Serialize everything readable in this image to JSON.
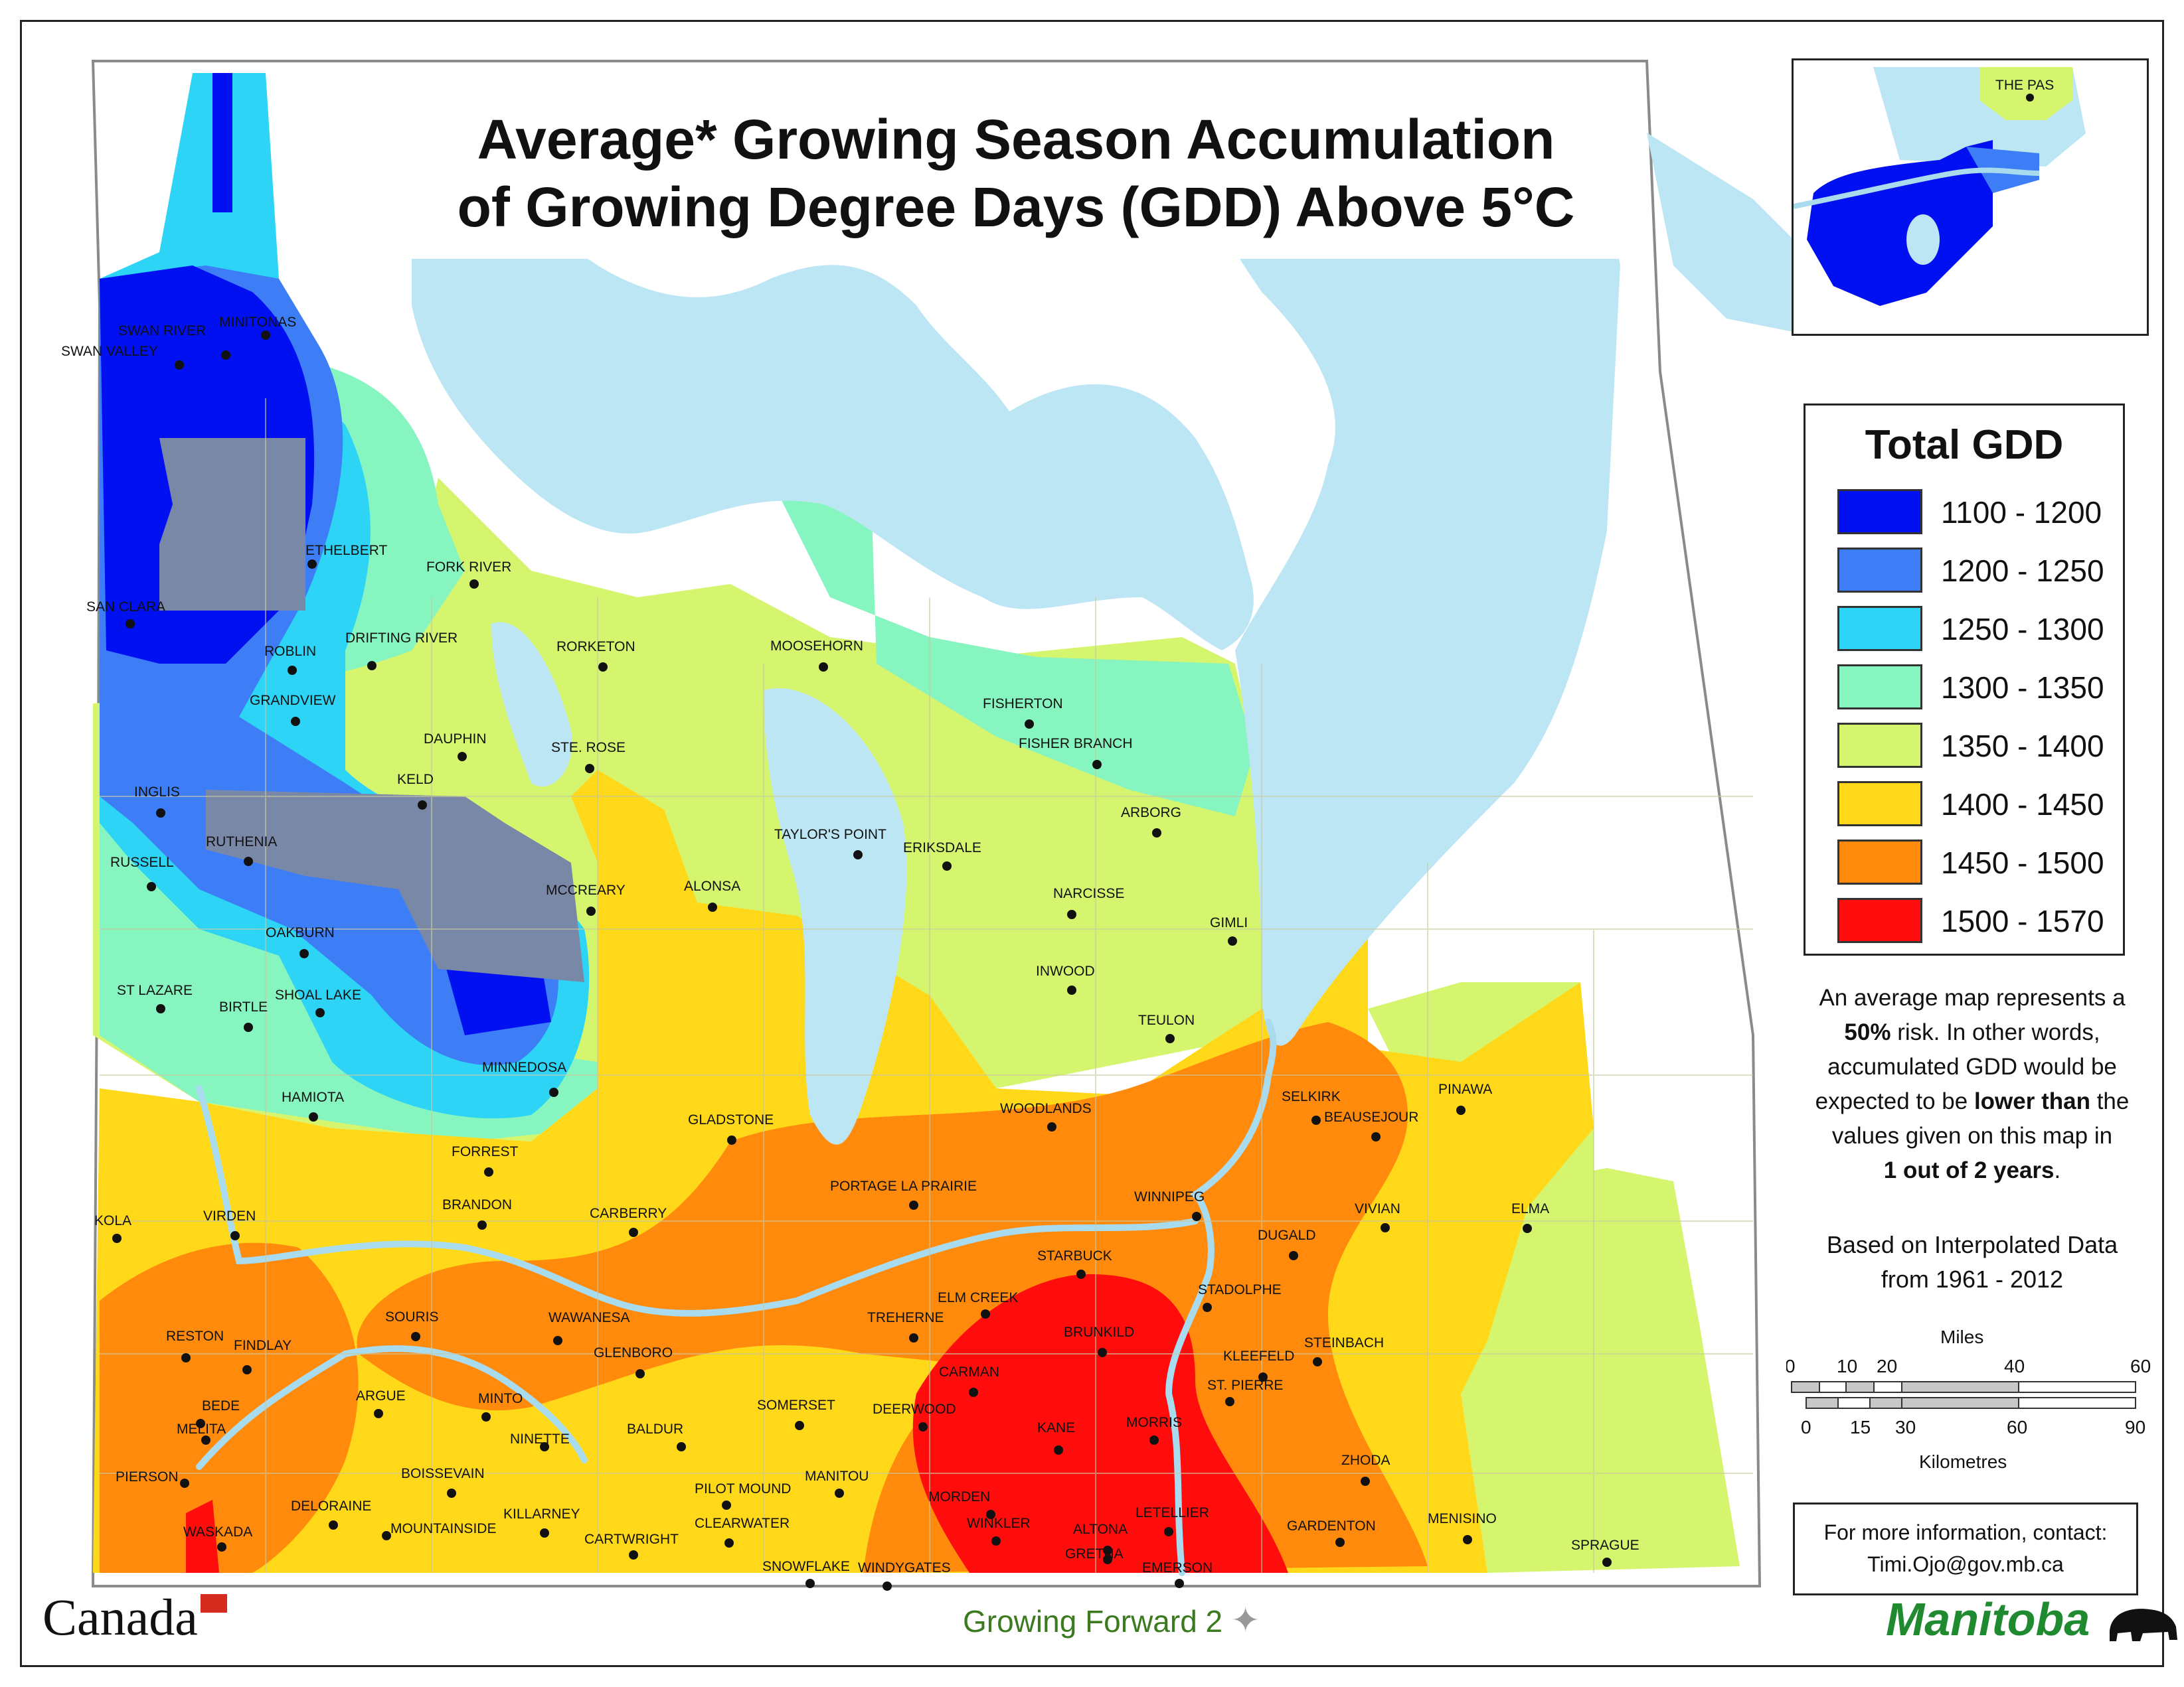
{
  "title": {
    "line1": "Average* Growing Season Accumulation",
    "line2": "of Growing Degree Days (GDD) Above 5°C"
  },
  "inset": {
    "city_label": "THE PAS"
  },
  "legend": {
    "title": "Total GDD",
    "classes": [
      {
        "label": "1100 - 1200",
        "color": "#0010f0"
      },
      {
        "label": "1200 - 1250",
        "color": "#3d7df5"
      },
      {
        "label": "1250 - 1300",
        "color": "#2dd4f6"
      },
      {
        "label": "1300 - 1350",
        "color": "#86f5bf"
      },
      {
        "label": "1350 - 1400",
        "color": "#d6f56e"
      },
      {
        "label": "1400 - 1450",
        "color": "#ffd81a"
      },
      {
        "label": "1450 - 1500",
        "color": "#ff8a0c"
      },
      {
        "label": "1500 - 1570",
        "color": "#ff0c0c"
      }
    ]
  },
  "note": {
    "line1": "An average map represents a",
    "risk_bold": "50%",
    "line2_rest": " risk. In other words,",
    "line3": "accumulated GDD would be",
    "line4_pre": "expected to be ",
    "line4_bold": "lower than",
    "line4_post": " the",
    "line5": "values given on this map in",
    "line6_bold": "1 out of 2 years",
    "line6_post": "."
  },
  "based_on": {
    "line1": "Based on Interpolated Data",
    "line2": "from 1961 - 2012"
  },
  "scale_bar": {
    "miles_label": "Miles",
    "miles_ticks": [
      "0",
      "10",
      "20",
      "40",
      "60"
    ],
    "km_ticks": [
      "0",
      "15",
      "30",
      "60",
      "90"
    ],
    "km_label": "Kilometres"
  },
  "contact": {
    "line1": "For more information, contact:",
    "email": "Timi.Ojo@gov.mb.ca"
  },
  "logos": {
    "canada": "Canada",
    "growing_forward": "Growing Forward 2",
    "manitoba": "Manitoba"
  },
  "cities": [
    "SWAN RIVER",
    "MINITONAS",
    "SWAN VALLEY",
    "ETHELBERT",
    "FORK RIVER",
    "SAN CLARA",
    "DRIFTING RIVER",
    "ROBLIN",
    "RORKETON",
    "MOOSEHORN",
    "FISHERTON",
    "FISHER BRANCH",
    "GRANDVIEW",
    "DAUPHIN",
    "STE. ROSE",
    "KELD",
    "INGLIS",
    "ARBORG",
    "TAYLOR'S POINT",
    "ERIKSDALE",
    "RUTHENIA",
    "RUSSELL",
    "MCCREARY",
    "ALONSA",
    "NARCISSE",
    "GIMLI",
    "OAKBURN",
    "INWOOD",
    "ST LAZARE",
    "SHOAL LAKE",
    "BIRTLE",
    "TEULON",
    "MINNEDOSA",
    "SELKIRK",
    "PINAWA",
    "HAMIOTA",
    "GLADSTONE",
    "WOODLANDS",
    "BEAUSEJOUR",
    "FORREST",
    "PORTAGE LA PRAIRIE",
    "WINNIPEG",
    "BRANDON",
    "VIVIAN",
    "ELMA",
    "KOLA",
    "VIRDEN",
    "CARBERRY",
    "DUGALD",
    "STARBUCK",
    "STADOLPHE",
    "ELM CREEK",
    "SOURIS",
    "WAWANESA",
    "TREHERNE",
    "RESTON",
    "BRUNKILD",
    "STEINBACH",
    "FINDLAY",
    "GLENBORO",
    "KLEEFELD",
    "CARMAN",
    "ST. PIERRE",
    "ARGUE",
    "BEDE",
    "MINTO",
    "SOMERSET",
    "DEERWOOD",
    "MELITA",
    "NINETTE",
    "BALDUR",
    "KANE",
    "MORRIS",
    "ZHODA",
    "PIERSON",
    "BOISSEVAIN",
    "MANITOU",
    "PILOT MOUND",
    "MORDEN",
    "DELORAINE",
    "KILLARNEY",
    "LETELLIER",
    "WASKADA",
    "MOUNTAINSIDE",
    "CLEARWATER",
    "WINKLER",
    "ALTONA",
    "GARDENTON",
    "MENISINO",
    "CARTWRIGHT",
    "GRETNA",
    "SPRAGUE",
    "SNOWFLAKE",
    "WINDYGATES",
    "EMERSON"
  ]
}
